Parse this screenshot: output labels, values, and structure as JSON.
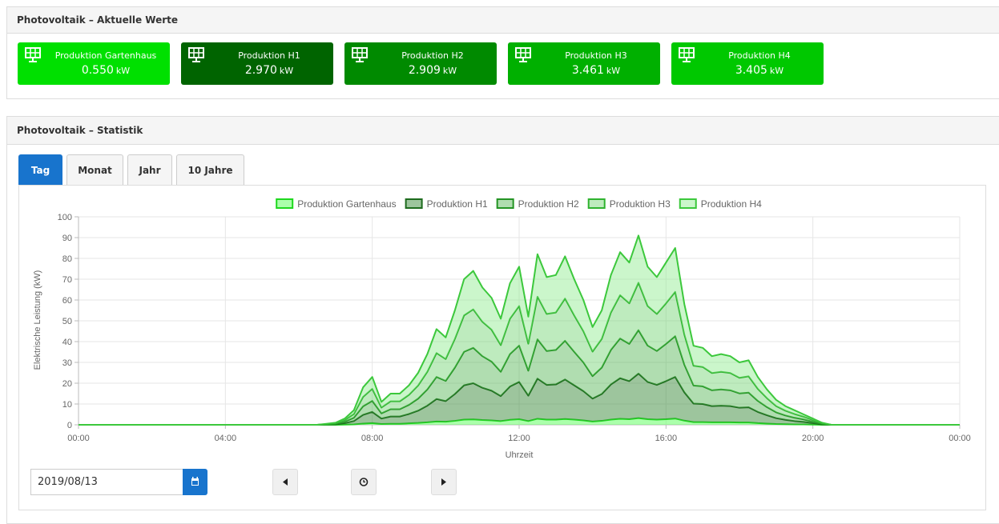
{
  "panel_current": {
    "title": "Photovoltaik – Aktuelle Werte",
    "tiles": [
      {
        "label": "Produktion Gartenhaus",
        "value": "0.550",
        "unit": "kW",
        "color": "#00e000"
      },
      {
        "label": "Produktion H1",
        "value": "2.970",
        "unit": "kW",
        "color": "#006400"
      },
      {
        "label": "Produktion H2",
        "value": "2.909",
        "unit": "kW",
        "color": "#008a00"
      },
      {
        "label": "Produktion H3",
        "value": "3.461",
        "unit": "kW",
        "color": "#00b000"
      },
      {
        "label": "Produktion H4",
        "value": "3.405",
        "unit": "kW",
        "color": "#00c800"
      }
    ]
  },
  "panel_stats": {
    "title": "Photovoltaik – Statistik",
    "tabs": [
      "Tag",
      "Monat",
      "Jahr",
      "10 Jahre"
    ],
    "active_tab": 0,
    "date": "2019/08/13"
  },
  "chart_data": {
    "type": "area",
    "stacked": true,
    "ylabel": "Elektrische Leistung (kW)",
    "xlabel": "Uhrzeit",
    "grid": true,
    "legend": "top",
    "x": [
      0,
      6.5,
      6.75,
      7,
      7.25,
      7.5,
      7.75,
      8,
      8.25,
      8.5,
      8.75,
      9,
      9.25,
      9.5,
      9.75,
      10,
      10.25,
      10.5,
      10.75,
      11,
      11.25,
      11.5,
      11.75,
      12,
      12.25,
      12.5,
      12.75,
      13,
      13.25,
      13.5,
      13.75,
      14,
      14.25,
      14.5,
      14.75,
      15,
      15.25,
      15.5,
      15.75,
      16,
      16.25,
      16.5,
      16.75,
      17,
      17.25,
      17.5,
      17.75,
      18,
      18.25,
      18.5,
      18.75,
      19,
      19.25,
      19.5,
      19.75,
      20,
      20.25,
      20.5,
      24
    ],
    "xlim": [
      0,
      24
    ],
    "xticks": [
      {
        "value": 0,
        "label": "00:00"
      },
      {
        "value": 4,
        "label": "04:00"
      },
      {
        "value": 8,
        "label": "08:00"
      },
      {
        "value": 12,
        "label": "12:00"
      },
      {
        "value": 16,
        "label": "16:00"
      },
      {
        "value": 20,
        "label": "20:00"
      },
      {
        "value": 24,
        "label": "00:00"
      }
    ],
    "ylim": [
      0,
      100
    ],
    "yticks": [
      0,
      10,
      20,
      30,
      40,
      50,
      60,
      70,
      80,
      90,
      100
    ],
    "series": [
      {
        "name": "Produktion Gartenhaus",
        "color": "#1ed81e",
        "fill": "rgba(102,255,102,0.55)",
        "values": [
          0,
          0,
          0,
          0,
          0.1,
          0.2,
          0.6,
          0.8,
          0.4,
          0.5,
          0.5,
          0.7,
          0.9,
          1.2,
          1.6,
          1.5,
          1.9,
          2.5,
          2.6,
          2.3,
          2.1,
          1.8,
          2.4,
          2.7,
          1.8,
          2.9,
          2.5,
          2.5,
          2.8,
          2.5,
          2.1,
          1.6,
          1.9,
          2.5,
          2.9,
          2.7,
          3.2,
          2.7,
          2.5,
          2.7,
          3,
          2,
          1.3,
          1.3,
          1.2,
          1.2,
          1.2,
          1.1,
          1.1,
          0.8,
          0.6,
          0.4,
          0.3,
          0.2,
          0.2,
          0.1,
          0,
          0,
          0
        ]
      },
      {
        "name": "Produktion H1",
        "color": "#1d6b1d",
        "fill": "rgba(60,140,60,0.5)",
        "values": [
          0,
          0,
          0.1,
          0.2,
          0.7,
          1.6,
          4.2,
          5.4,
          2.6,
          3.5,
          3.5,
          4.5,
          5.9,
          8,
          10.8,
          9.9,
          12.9,
          16.5,
          17.4,
          15.5,
          14.3,
          12,
          16,
          17.9,
          12.2,
          19.3,
          16.7,
          16.9,
          19,
          16.5,
          14.1,
          11,
          12.9,
          16.9,
          19.5,
          18.3,
          21.4,
          17.9,
          16.7,
          18.3,
          20,
          13.6,
          8.9,
          8.7,
          7.8,
          8,
          7.8,
          7.1,
          7.3,
          5.4,
          4,
          2.8,
          2.1,
          1.6,
          1.2,
          0.7,
          0.2,
          0,
          0
        ]
      },
      {
        "name": "Produktion H2",
        "color": "#249424",
        "fill": "rgba(80,180,80,0.45)",
        "values": [
          0,
          0,
          0.1,
          0.2,
          0.7,
          1.6,
          4.1,
          5.3,
          2.5,
          3.5,
          3.5,
          4.4,
          5.8,
          7.8,
          10.6,
          9.7,
          12.7,
          16.1,
          17,
          15.2,
          14,
          11.7,
          15.6,
          17.5,
          12,
          18.9,
          16.3,
          16.6,
          18.6,
          16.1,
          13.8,
          10.8,
          12.7,
          16.6,
          19.1,
          17.9,
          20.9,
          17.5,
          16.3,
          17.9,
          19.6,
          13.3,
          8.7,
          8.5,
          7.6,
          7.8,
          7.6,
          6.9,
          7.1,
          5.3,
          3.9,
          2.8,
          2.1,
          1.6,
          1.2,
          0.7,
          0.2,
          0,
          0
        ]
      },
      {
        "name": "Produktion H3",
        "color": "#2fb32f",
        "fill": "rgba(110,210,110,0.45)",
        "values": [
          0,
          0,
          0.1,
          0.3,
          0.8,
          1.8,
          4.5,
          5.8,
          2.8,
          3.8,
          3.8,
          4.8,
          6.3,
          8.5,
          11.5,
          10.5,
          13.8,
          17.5,
          18.5,
          16.5,
          15.3,
          12.8,
          17,
          19,
          13,
          20.5,
          17.8,
          18,
          20.3,
          17.5,
          15,
          11.8,
          13.8,
          18,
          20.8,
          19.5,
          22.8,
          19,
          17.8,
          19.5,
          21.3,
          14.5,
          9.5,
          9.3,
          8.3,
          8.5,
          8.3,
          7.5,
          7.8,
          5.8,
          4.3,
          3,
          2.3,
          1.8,
          1.3,
          0.8,
          0.3,
          0,
          0
        ]
      },
      {
        "name": "Produktion H4",
        "color": "#3cc83c",
        "fill": "rgba(140,235,140,0.45)",
        "values": [
          0,
          0,
          0.2,
          0.3,
          0.7,
          1.8,
          4.6,
          5.7,
          2.7,
          3.7,
          3.7,
          4.6,
          6.1,
          8.5,
          11.5,
          10.4,
          13.7,
          17.4,
          18.5,
          16.5,
          15.3,
          12.7,
          17,
          18.9,
          13,
          20.4,
          17.7,
          18,
          20.3,
          17.4,
          15,
          11.8,
          13.7,
          18,
          20.7,
          19.6,
          22.7,
          18.9,
          17.7,
          19.6,
          21.1,
          14.6,
          9.6,
          9.2,
          8.1,
          8.5,
          8.1,
          7.4,
          7.7,
          5.7,
          4.2,
          3,
          2.2,
          1.8,
          1.1,
          0.7,
          0.3,
          0,
          0
        ]
      }
    ]
  }
}
